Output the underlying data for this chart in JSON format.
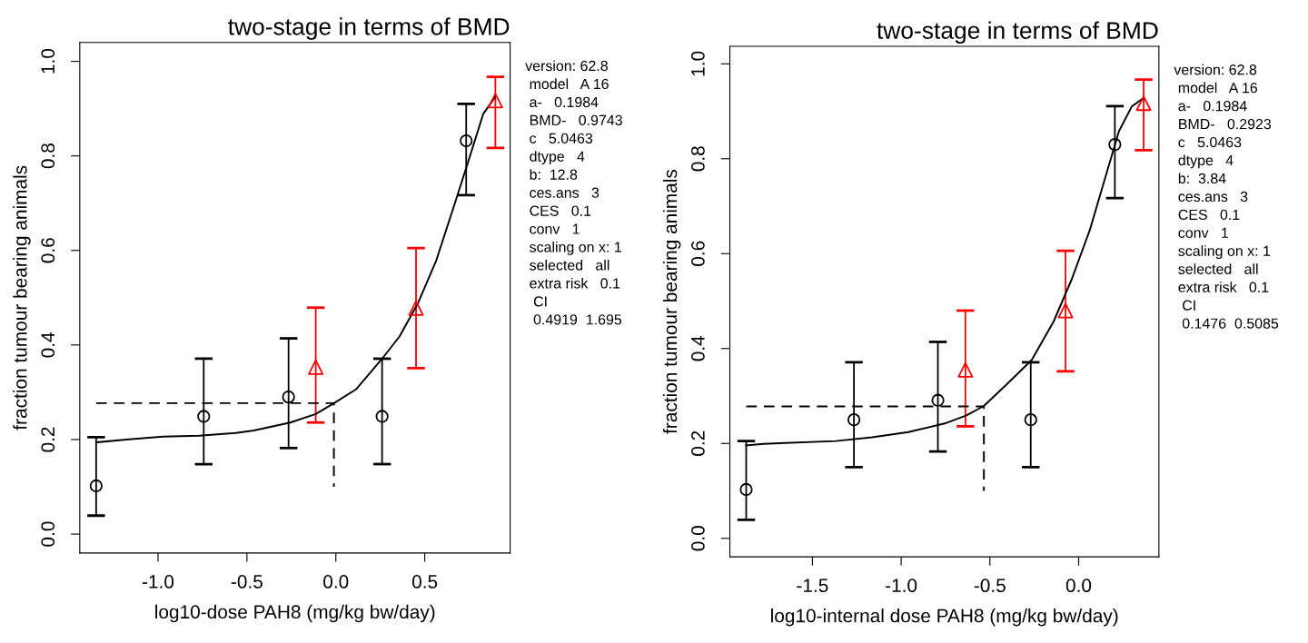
{
  "chart_data": [
    {
      "type": "scatter",
      "title": "two-stage in terms of BMD",
      "xlabel": "log10-dose PAH8 (mg/kg bw/day)",
      "ylabel": "fraction tumour bearing animals",
      "xlim": [
        -1.44,
        0.98
      ],
      "ylim": [
        -0.04,
        1.04
      ],
      "xticks": [
        {
          "value": -1.0,
          "label": "-1.0"
        },
        {
          "value": -0.5,
          "label": "-0.5"
        },
        {
          "value": 0.0,
          "label": "0.0"
        },
        {
          "value": 0.5,
          "label": "0.5"
        }
      ],
      "yticks": [
        {
          "value": 0.0,
          "label": "0.0"
        },
        {
          "value": 0.2,
          "label": "0.2"
        },
        {
          "value": 0.4,
          "label": "0.4"
        },
        {
          "value": 0.6,
          "label": "0.6"
        },
        {
          "value": 0.8,
          "label": "0.8"
        },
        {
          "value": 1.0,
          "label": "1.0"
        }
      ],
      "grid": false,
      "legend": false,
      "series": [
        {
          "marker": "circle",
          "color": "#000000",
          "x": [
            -1.348,
            -0.743,
            -0.266,
            0.26,
            0.733
          ],
          "values": [
            0.102,
            0.249,
            0.29,
            0.249,
            0.832
          ],
          "errors": [
            [
              0.039,
              0.205
            ],
            [
              0.148,
              0.371
            ],
            [
              0.182,
              0.414
            ],
            [
              0.148,
              0.371
            ],
            [
              0.717,
              0.91
            ]
          ]
        },
        {
          "marker": "triangle",
          "color": "#ff0000",
          "x": [
            -0.113,
            0.451,
            0.897
          ],
          "values": [
            0.353,
            0.478,
            0.917
          ],
          "errors": [
            [
              0.236,
              0.479
            ],
            [
              0.351,
              0.605
            ],
            [
              0.817,
              0.967
            ]
          ]
        },
        {
          "type": "line",
          "marker": "none",
          "line_style": "solid",
          "color": "#000000",
          "x": [
            -1.348,
            -1.178,
            -0.973,
            -0.768,
            -0.563,
            -0.461,
            -0.256,
            -0.113,
            -0.01,
            0.113,
            0.256,
            0.358,
            0.461,
            0.563,
            0.666,
            0.748,
            0.829,
            0.897
          ],
          "values": [
            0.194,
            0.2,
            0.206,
            0.208,
            0.214,
            0.219,
            0.236,
            0.254,
            0.277,
            0.306,
            0.369,
            0.418,
            0.488,
            0.577,
            0.696,
            0.792,
            0.889,
            0.925
          ]
        },
        {
          "type": "line",
          "marker": "none",
          "line_style": "dashed",
          "color": "#000000",
          "x": [
            -1.348,
            -0.011,
            -0.011
          ],
          "values": [
            0.277,
            0.277,
            0.1
          ]
        }
      ],
      "annotations": [
        "version: 62.8",
        " model   A 16",
        " a-   0.1984",
        " BMD-   0.9743",
        " c   5.0463",
        " dtype   4",
        " b:  12.8",
        " ces.ans   3",
        " CES   0.1",
        " conv   1",
        " scaling on x: 1",
        " selected   all",
        " extra risk   0.1",
        "  CI",
        "  0.4919  1.695"
      ]
    },
    {
      "type": "scatter",
      "title": "two-stage in terms of BMD",
      "xlabel": "log10-internal dose PAH8 (mg/kg bw/day)",
      "ylabel": "fraction tumour bearing animals",
      "xlim": [
        -1.965,
        0.452
      ],
      "ylim": [
        -0.039,
        1.037
      ],
      "xticks": [
        {
          "value": -1.5,
          "label": "-1.5"
        },
        {
          "value": -1.0,
          "label": "-1.0"
        },
        {
          "value": -0.5,
          "label": "-0.5"
        },
        {
          "value": 0.0,
          "label": "0.0"
        }
      ],
      "yticks": [
        {
          "value": 0.0,
          "label": "0.0"
        },
        {
          "value": 0.2,
          "label": "0.2"
        },
        {
          "value": 0.4,
          "label": "0.4"
        },
        {
          "value": 0.6,
          "label": "0.6"
        },
        {
          "value": 0.8,
          "label": "0.8"
        },
        {
          "value": 1.0,
          "label": "1.0"
        }
      ],
      "grid": false,
      "legend": false,
      "series": [
        {
          "marker": "circle",
          "color": "#000000",
          "x": [
            -1.873,
            -1.266,
            -0.793,
            -0.27,
            0.204
          ],
          "values": [
            0.103,
            0.25,
            0.291,
            0.25,
            0.83
          ],
          "errors": [
            [
              0.039,
              0.205
            ],
            [
              0.15,
              0.371
            ],
            [
              0.183,
              0.414
            ],
            [
              0.15,
              0.371
            ],
            [
              0.717,
              0.911
            ]
          ]
        },
        {
          "marker": "triangle",
          "color": "#ff0000",
          "x": [
            -0.638,
            -0.074,
            0.366
          ],
          "values": [
            0.355,
            0.48,
            0.917
          ],
          "errors": [
            [
              0.236,
              0.48
            ],
            [
              0.352,
              0.606
            ],
            [
              0.818,
              0.967
            ]
          ]
        },
        {
          "type": "line",
          "marker": "none",
          "line_style": "solid",
          "color": "#000000",
          "x": [
            -1.873,
            -1.777,
            -1.654,
            -1.368,
            -1.164,
            -0.959,
            -0.755,
            -0.632,
            -0.534,
            -0.407,
            -0.264,
            -0.141,
            -0.039,
            0.063,
            0.145,
            0.227,
            0.299,
            0.366
          ],
          "values": [
            0.196,
            0.199,
            0.201,
            0.205,
            0.213,
            0.224,
            0.242,
            0.259,
            0.279,
            0.324,
            0.376,
            0.457,
            0.546,
            0.65,
            0.754,
            0.858,
            0.91,
            0.928
          ]
        },
        {
          "type": "line",
          "marker": "none",
          "line_style": "dashed",
          "color": "#000000",
          "x": [
            -1.873,
            -0.534,
            -0.534
          ],
          "values": [
            0.278,
            0.278,
            0.1
          ]
        }
      ],
      "annotations": [
        "version: 62.8",
        " model   A 16",
        " a-   0.1984",
        " BMD-   0.2923",
        " c   5.0463",
        " dtype   4",
        " b:  3.84",
        " ces.ans   3",
        " CES   0.1",
        " conv   1",
        " scaling on x: 1",
        " selected   all",
        " extra risk   0.1",
        "  CI",
        "  0.1476  0.5085"
      ]
    }
  ]
}
